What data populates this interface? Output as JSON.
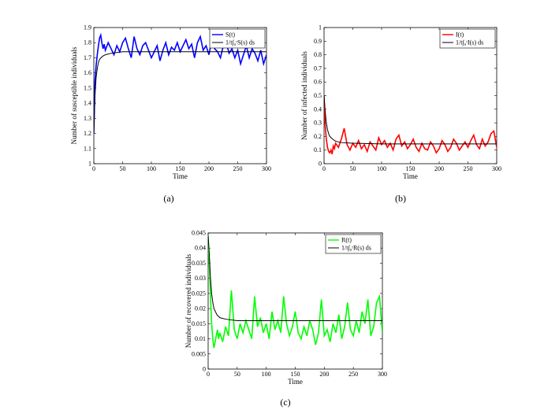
{
  "panels": [
    "(a)",
    "(b)",
    "(c)"
  ],
  "chart_data": [
    {
      "type": "line",
      "panel_label": "(a)",
      "xlabel": "Time",
      "ylabel": "Number of  susceptible individuals",
      "xlim": [
        0,
        300
      ],
      "ylim": [
        1,
        1.9
      ],
      "xticks": [
        0,
        50,
        100,
        150,
        200,
        250,
        300
      ],
      "yticks": [
        1,
        1.1,
        1.2,
        1.3,
        1.4,
        1.5,
        1.6,
        1.7,
        1.8,
        1.9
      ],
      "legend_placement": "top-right",
      "series": [
        {
          "name": "S(t)",
          "color": "#0000ff",
          "x": [
            0,
            2,
            4,
            6,
            8,
            10,
            12,
            14,
            16,
            18,
            20,
            25,
            30,
            35,
            40,
            45,
            50,
            55,
            60,
            65,
            70,
            75,
            80,
            85,
            90,
            95,
            100,
            105,
            110,
            115,
            120,
            125,
            130,
            135,
            140,
            145,
            150,
            155,
            160,
            165,
            170,
            175,
            180,
            185,
            190,
            195,
            200,
            205,
            210,
            215,
            220,
            225,
            230,
            235,
            240,
            245,
            250,
            255,
            260,
            265,
            270,
            275,
            280,
            285,
            290,
            295,
            300
          ],
          "y": [
            1.2,
            1.55,
            1.65,
            1.72,
            1.78,
            1.83,
            1.85,
            1.8,
            1.76,
            1.79,
            1.75,
            1.8,
            1.76,
            1.72,
            1.78,
            1.74,
            1.8,
            1.83,
            1.76,
            1.7,
            1.84,
            1.76,
            1.72,
            1.78,
            1.8,
            1.75,
            1.7,
            1.74,
            1.78,
            1.68,
            1.75,
            1.8,
            1.72,
            1.77,
            1.75,
            1.8,
            1.74,
            1.78,
            1.82,
            1.76,
            1.79,
            1.7,
            1.8,
            1.84,
            1.75,
            1.78,
            1.72,
            1.82,
            1.76,
            1.74,
            1.7,
            1.78,
            1.8,
            1.73,
            1.76,
            1.7,
            1.75,
            1.66,
            1.72,
            1.78,
            1.7,
            1.76,
            1.73,
            1.68,
            1.75,
            1.66,
            1.72
          ]
        },
        {
          "name": "1/t∫₀ᵗS(s) ds",
          "color": "#000000",
          "x": [
            0,
            2,
            4,
            6,
            8,
            10,
            15,
            20,
            30,
            50,
            100,
            150,
            200,
            250,
            300
          ],
          "y": [
            1.2,
            1.45,
            1.57,
            1.63,
            1.67,
            1.69,
            1.71,
            1.72,
            1.73,
            1.74,
            1.74,
            1.74,
            1.74,
            1.74,
            1.74
          ]
        }
      ]
    },
    {
      "type": "line",
      "panel_label": "(b)",
      "xlabel": "Time",
      "ylabel": "Number of  infected individuals",
      "xlim": [
        0,
        300
      ],
      "ylim": [
        0,
        1
      ],
      "xticks": [
        0,
        50,
        100,
        150,
        200,
        250,
        300
      ],
      "yticks": [
        0,
        0.1,
        0.2,
        0.3,
        0.4,
        0.5,
        0.6,
        0.7,
        0.8,
        0.9,
        1
      ],
      "legend_placement": "top-right",
      "series": [
        {
          "name": "I(t)",
          "color": "#ff0000",
          "x": [
            0,
            2,
            4,
            6,
            8,
            10,
            12,
            14,
            16,
            18,
            20,
            25,
            30,
            35,
            40,
            45,
            50,
            55,
            60,
            65,
            70,
            75,
            80,
            85,
            90,
            95,
            100,
            105,
            110,
            115,
            120,
            125,
            130,
            135,
            140,
            145,
            150,
            155,
            160,
            165,
            170,
            175,
            180,
            185,
            190,
            195,
            200,
            205,
            210,
            215,
            220,
            225,
            230,
            235,
            240,
            245,
            250,
            255,
            260,
            265,
            270,
            275,
            280,
            285,
            290,
            295,
            300
          ],
          "y": [
            0.5,
            0.28,
            0.18,
            0.12,
            0.09,
            0.08,
            0.1,
            0.07,
            0.13,
            0.11,
            0.15,
            0.12,
            0.18,
            0.26,
            0.14,
            0.1,
            0.15,
            0.12,
            0.17,
            0.11,
            0.14,
            0.09,
            0.16,
            0.13,
            0.1,
            0.19,
            0.14,
            0.17,
            0.12,
            0.15,
            0.1,
            0.18,
            0.21,
            0.13,
            0.16,
            0.11,
            0.14,
            0.18,
            0.12,
            0.09,
            0.15,
            0.11,
            0.1,
            0.16,
            0.13,
            0.08,
            0.11,
            0.17,
            0.14,
            0.09,
            0.12,
            0.18,
            0.15,
            0.1,
            0.13,
            0.16,
            0.12,
            0.17,
            0.21,
            0.14,
            0.11,
            0.18,
            0.13,
            0.16,
            0.22,
            0.24,
            0.12
          ]
        },
        {
          "name": "1/t∫₀ᵗI(s) ds",
          "color": "#000000",
          "x": [
            0,
            2,
            4,
            6,
            8,
            10,
            15,
            20,
            30,
            50,
            100,
            150,
            200,
            250,
            300
          ],
          "y": [
            0.5,
            0.38,
            0.3,
            0.25,
            0.22,
            0.2,
            0.18,
            0.165,
            0.155,
            0.15,
            0.145,
            0.145,
            0.145,
            0.145,
            0.145
          ]
        }
      ]
    },
    {
      "type": "line",
      "panel_label": "(c)",
      "xlabel": "Time",
      "ylabel": "Number of recovered individuals",
      "xlim": [
        0,
        300
      ],
      "ylim": [
        0,
        0.045
      ],
      "xticks": [
        0,
        50,
        100,
        150,
        200,
        250,
        300
      ],
      "yticks": [
        0,
        0.005,
        0.01,
        0.015,
        0.02,
        0.025,
        0.03,
        0.035,
        0.04,
        0.045
      ],
      "legend_placement": "top-right",
      "series": [
        {
          "name": "R(t)",
          "color": "#00ff00",
          "x": [
            0,
            2,
            4,
            6,
            8,
            10,
            12,
            14,
            16,
            18,
            20,
            25,
            30,
            35,
            40,
            45,
            50,
            55,
            60,
            65,
            70,
            75,
            80,
            85,
            90,
            95,
            100,
            105,
            110,
            115,
            120,
            125,
            130,
            135,
            140,
            145,
            150,
            155,
            160,
            165,
            170,
            175,
            180,
            185,
            190,
            195,
            200,
            205,
            210,
            215,
            220,
            225,
            230,
            235,
            240,
            245,
            250,
            255,
            260,
            265,
            270,
            275,
            280,
            285,
            290,
            295,
            300
          ],
          "y": [
            0.044,
            0.035,
            0.024,
            0.015,
            0.01,
            0.007,
            0.009,
            0.011,
            0.013,
            0.01,
            0.012,
            0.009,
            0.014,
            0.011,
            0.026,
            0.013,
            0.01,
            0.015,
            0.012,
            0.016,
            0.013,
            0.01,
            0.024,
            0.014,
            0.017,
            0.012,
            0.015,
            0.01,
            0.019,
            0.013,
            0.016,
            0.012,
            0.024,
            0.015,
            0.011,
            0.014,
            0.019,
            0.012,
            0.01,
            0.014,
            0.011,
            0.016,
            0.013,
            0.008,
            0.012,
            0.023,
            0.011,
            0.013,
            0.009,
            0.015,
            0.012,
            0.018,
            0.01,
            0.014,
            0.022,
            0.013,
            0.011,
            0.016,
            0.012,
            0.019,
            0.015,
            0.023,
            0.011,
            0.014,
            0.022,
            0.024,
            0.012
          ]
        },
        {
          "name": "1/t∫₀ᵗR(s) ds",
          "color": "#000000",
          "x": [
            0,
            2,
            4,
            6,
            8,
            10,
            15,
            20,
            30,
            50,
            100,
            150,
            200,
            250,
            300
          ],
          "y": [
            0.044,
            0.038,
            0.03,
            0.025,
            0.022,
            0.02,
            0.018,
            0.017,
            0.0165,
            0.016,
            0.016,
            0.016,
            0.016,
            0.016,
            0.016
          ]
        }
      ]
    }
  ]
}
